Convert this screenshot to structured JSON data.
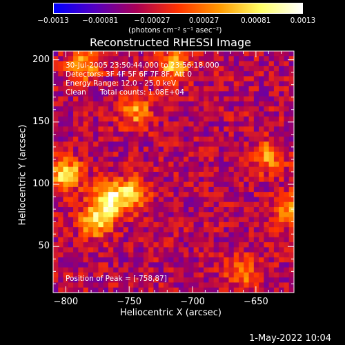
{
  "chart_data": {
    "type": "heatmap",
    "title": "Reconstructed RHESSI Image",
    "xlabel": "Heliocentric X (arcsec)",
    "ylabel": "Heliocentric Y (arcsec)",
    "xlim": [
      -810,
      -620
    ],
    "ylim": [
      13,
      207
    ],
    "x_ticks": [
      -800,
      -750,
      -700,
      -650
    ],
    "x_tick_labels": [
      "−800",
      "−750",
      "−700",
      "−650"
    ],
    "y_ticks": [
      50,
      100,
      150,
      200
    ],
    "y_tick_labels": [
      "50",
      "100",
      "150",
      "200"
    ],
    "colorbar": {
      "range": [
        -0.0013,
        0.0013
      ],
      "ticks": [
        -0.0013,
        -0.00081,
        -0.00027,
        0.00027,
        0.00081,
        0.0013
      ],
      "tick_labels": [
        "−0.0013",
        "−0.00081",
        "−0.00027",
        "0.00027",
        "0.00081",
        "0.0013"
      ],
      "unit_label": "(photons cm⁻² s⁻¹ asec⁻²)",
      "colormap": [
        "#0000ff",
        "#5500c0",
        "#aa0055",
        "#ff3300",
        "#ff9900",
        "#ffff66",
        "#ffffff"
      ]
    },
    "grid": false,
    "peak": {
      "x": -758,
      "y": 87
    },
    "bright_features": [
      {
        "x": -785,
        "y": 196,
        "value": 0.0009
      },
      {
        "x": -800,
        "y": 108,
        "value": 0.0012
      },
      {
        "x": -766,
        "y": 88,
        "value": 0.0013
      },
      {
        "x": -776,
        "y": 70,
        "value": 0.0011
      },
      {
        "x": -748,
        "y": 92,
        "value": 0.001
      },
      {
        "x": -745,
        "y": 158,
        "value": 0.0008
      },
      {
        "x": -715,
        "y": 195,
        "value": 0.0009
      },
      {
        "x": -640,
        "y": 122,
        "value": 0.0008
      },
      {
        "x": -622,
        "y": 80,
        "value": 0.0009
      },
      {
        "x": -660,
        "y": 30,
        "value": 0.0007
      }
    ]
  },
  "annotations": {
    "time": "30-Jul-2005 23:50:44.000 to 23:56:18.000",
    "detectors": "Detectors: 3F 4F 5F 6F 7F 8F, Att 0",
    "energy": "Energy Range: 12.0 - 25.0 keV",
    "method": "Clean",
    "counts": "Total counts: 1.08E+04",
    "peak": "Position of Peak = [-758,87]"
  },
  "footer": {
    "date": "1-May-2022 10:04"
  }
}
